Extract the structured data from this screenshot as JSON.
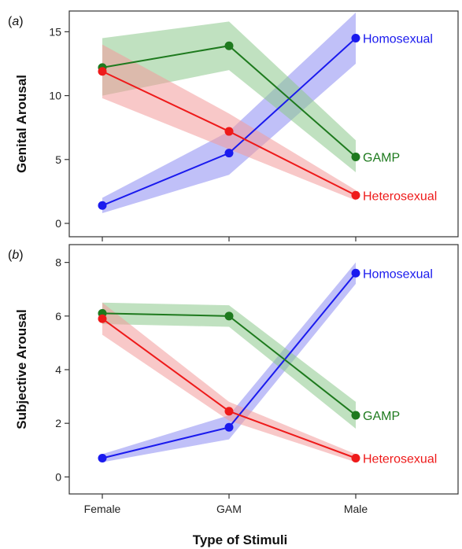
{
  "chart_data": [
    {
      "type": "line",
      "panel_label": "(a)",
      "ylabel": "Genital Arousal",
      "xlabel": "Type of Stimuli",
      "categories": [
        "Female",
        "GAM",
        "Male"
      ],
      "ylim": [
        -0.8,
        16.5
      ],
      "yticks": [
        0,
        5,
        10,
        15
      ],
      "series": [
        {
          "name": "Homosexual",
          "color": "#1a1aee",
          "band_color": "#8c8cf2",
          "values": [
            1.4,
            5.5,
            14.5
          ],
          "lower": [
            0.8,
            3.8,
            12.5
          ],
          "upper": [
            2.0,
            7.2,
            16.5
          ]
        },
        {
          "name": "GAMP",
          "color": "#1e7a1e",
          "band_color": "#8cc98c",
          "values": [
            12.2,
            13.9,
            5.2
          ],
          "lower": [
            10.0,
            12.0,
            4.0
          ],
          "upper": [
            14.5,
            15.8,
            6.5
          ]
        },
        {
          "name": "Heterosexual",
          "color": "#ee1a1a",
          "band_color": "#f29a9a",
          "values": [
            11.9,
            7.2,
            2.2
          ],
          "lower": [
            9.8,
            5.8,
            1.8
          ],
          "upper": [
            14.0,
            8.6,
            2.6
          ]
        }
      ]
    },
    {
      "type": "line",
      "panel_label": "(b)",
      "ylabel": "Subjective Arousal",
      "xlabel": "Type of Stimuli",
      "categories": [
        "Female",
        "GAM",
        "Male"
      ],
      "ylim": [
        -0.4,
        8.4
      ],
      "yticks": [
        0,
        2,
        4,
        6,
        8
      ],
      "series": [
        {
          "name": "Homosexual",
          "color": "#1a1aee",
          "band_color": "#8c8cf2",
          "values": [
            0.7,
            1.85,
            7.6
          ],
          "lower": [
            0.55,
            1.4,
            7.2
          ],
          "upper": [
            0.85,
            2.3,
            8.0
          ]
        },
        {
          "name": "GAMP",
          "color": "#1e7a1e",
          "band_color": "#8cc98c",
          "values": [
            6.1,
            6.0,
            2.3
          ],
          "lower": [
            5.7,
            5.6,
            1.8
          ],
          "upper": [
            6.5,
            6.4,
            2.8
          ]
        },
        {
          "name": "Heterosexual",
          "color": "#ee1a1a",
          "band_color": "#f29a9a",
          "values": [
            5.9,
            2.45,
            0.7
          ],
          "lower": [
            5.3,
            2.1,
            0.55
          ],
          "upper": [
            6.5,
            2.8,
            0.85
          ]
        }
      ]
    }
  ]
}
